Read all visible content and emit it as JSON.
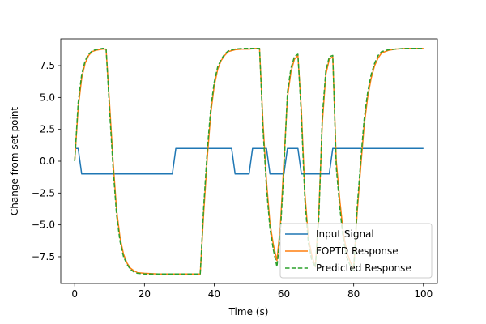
{
  "chart_data": {
    "type": "line",
    "title": "",
    "xlabel": "Time (s)",
    "ylabel": "Change from set point",
    "xlim": [
      -4,
      104
    ],
    "ylim": [
      -9.6,
      9.6
    ],
    "xticks": [
      0,
      20,
      40,
      60,
      80,
      100
    ],
    "yticks": [
      -7.5,
      -5.0,
      -2.5,
      0.0,
      2.5,
      5.0,
      7.5
    ],
    "xtick_labels": [
      "0",
      "20",
      "40",
      "60",
      "80",
      "100"
    ],
    "ytick_labels": [
      "−7.5",
      "−5.0",
      "−2.5",
      "0.0",
      "2.5",
      "5.0",
      "7.5"
    ],
    "grid": false,
    "legend_position": "lower-right",
    "series": [
      {
        "name": "Input Signal",
        "color": "#1f77b4",
        "style": "solid",
        "x": [
          0,
          1,
          2,
          28,
          29,
          45,
          46,
          50,
          51,
          55,
          56,
          60,
          61,
          64,
          65,
          73,
          74,
          100
        ],
        "y": [
          1,
          1,
          -1,
          -1,
          1,
          1,
          -1,
          -1,
          1,
          1,
          -1,
          -1,
          1,
          1,
          -1,
          -1,
          1,
          1
        ]
      },
      {
        "name": "FOPTD Response",
        "color": "#ff7f0e",
        "style": "solid",
        "x": [
          0,
          1,
          2,
          3,
          4,
          5,
          6,
          7,
          8,
          9,
          10,
          11,
          12,
          13,
          14,
          15,
          16,
          17,
          18,
          20,
          24,
          28,
          32,
          36,
          37,
          38,
          39,
          40,
          41,
          42,
          43,
          44,
          46,
          48,
          50,
          52,
          53,
          54,
          55,
          56,
          57,
          58,
          59,
          60,
          61,
          62,
          63,
          64,
          65,
          66,
          67,
          68,
          69,
          70,
          71,
          72,
          73,
          74,
          75,
          76,
          77,
          78,
          79,
          80,
          81,
          82,
          83,
          84,
          85,
          86,
          87,
          88,
          90,
          92,
          95,
          100
        ],
        "y": [
          0.0,
          4.2,
          6.5,
          7.7,
          8.3,
          8.6,
          8.7,
          8.75,
          8.8,
          8.8,
          4.5,
          0.0,
          -3.8,
          -6.0,
          -7.3,
          -8.0,
          -8.4,
          -8.6,
          -8.75,
          -8.8,
          -8.85,
          -8.85,
          -8.85,
          -8.85,
          -4.0,
          0.2,
          3.7,
          5.9,
          7.2,
          7.9,
          8.3,
          8.6,
          8.75,
          8.8,
          8.8,
          8.85,
          8.85,
          3.0,
          -1.6,
          -4.9,
          -6.6,
          -7.8,
          -5.0,
          0.0,
          5.0,
          7.0,
          8.0,
          8.3,
          4.0,
          -2.5,
          -6.0,
          -7.4,
          -8.3,
          -4.0,
          3.0,
          6.8,
          8.0,
          8.2,
          0.0,
          -3.0,
          -5.6,
          -7.1,
          -7.9,
          -8.4,
          -4.0,
          -0.5,
          2.8,
          5.0,
          6.5,
          7.5,
          8.1,
          8.5,
          8.7,
          8.8,
          8.85,
          8.85
        ]
      },
      {
        "name": "Predicted Response",
        "color": "#2ca02c",
        "style": "dashed",
        "x": [
          0,
          1,
          2,
          3,
          4,
          5,
          6,
          7,
          8,
          9,
          10,
          11,
          12,
          13,
          14,
          15,
          16,
          17,
          18,
          20,
          24,
          28,
          32,
          36,
          37,
          38,
          39,
          40,
          41,
          42,
          43,
          44,
          46,
          48,
          50,
          52,
          53,
          54,
          55,
          56,
          57,
          58,
          59,
          60,
          61,
          62,
          63,
          64,
          65,
          66,
          67,
          68,
          69,
          70,
          71,
          72,
          73,
          74,
          75,
          76,
          77,
          78,
          79,
          80,
          81,
          82,
          83,
          84,
          85,
          86,
          87,
          88,
          90,
          92,
          95,
          100
        ],
        "y": [
          0.0,
          4.6,
          6.8,
          7.9,
          8.4,
          8.65,
          8.75,
          8.8,
          8.85,
          8.85,
          4.0,
          -0.5,
          -4.2,
          -6.3,
          -7.5,
          -8.1,
          -8.5,
          -8.7,
          -8.8,
          -8.85,
          -8.85,
          -8.85,
          -8.85,
          -8.85,
          -3.5,
          0.8,
          4.1,
          6.2,
          7.4,
          8.0,
          8.4,
          8.65,
          8.8,
          8.85,
          8.85,
          8.85,
          8.85,
          2.5,
          -2.1,
          -5.3,
          -7.0,
          -8.3,
          -5.5,
          -0.6,
          5.4,
          7.3,
          8.2,
          8.4,
          3.5,
          -3.0,
          -6.4,
          -7.8,
          -8.3,
          -4.5,
          3.5,
          7.1,
          8.2,
          8.3,
          -0.5,
          -3.6,
          -6.1,
          -7.5,
          -8.2,
          -8.6,
          -3.6,
          0.0,
          3.3,
          5.4,
          6.8,
          7.7,
          8.3,
          8.6,
          8.75,
          8.8,
          8.85,
          8.85
        ]
      }
    ]
  }
}
